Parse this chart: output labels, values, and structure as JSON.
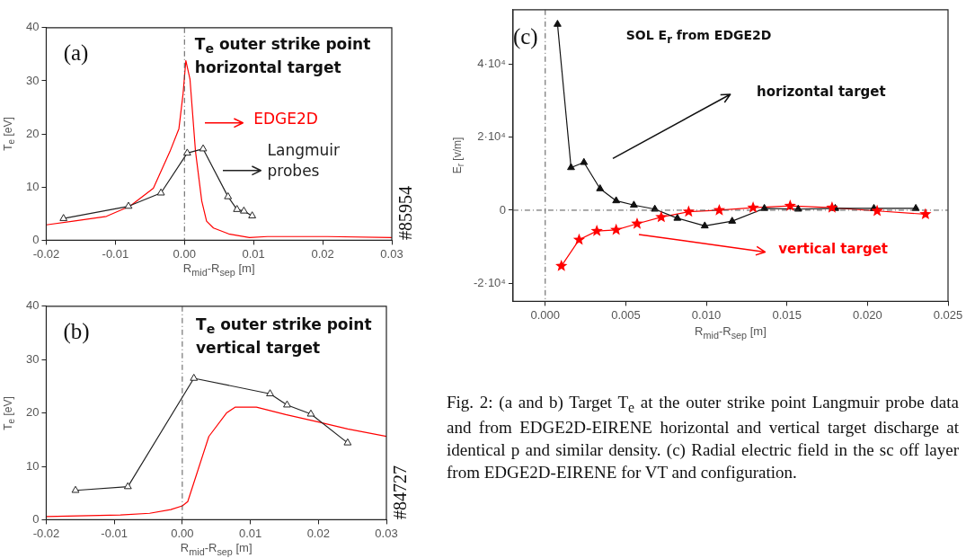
{
  "chart_data": [
    {
      "type": "line",
      "title": "T$_{e}$ outer strike point horizontal target",
      "xlabel": "R$_{mid}$-R$_{sep}$ [m]",
      "ylabel": "T$_{e}$ [eV]",
      "xlim": [
        -0.02,
        0.03
      ],
      "ylim": [
        0,
        40
      ],
      "xticks": [
        -0.02,
        -0.01,
        {
          "value": 0,
          "label": "0.00"
        },
        0.01,
        0.02,
        0.03
      ],
      "yticks": [
        0,
        10,
        20,
        30,
        40
      ],
      "series": [
        {
          "name": "Langmuir probes",
          "color": "#222222",
          "marker": "triangle",
          "x": [
            -0.0175,
            -0.0081,
            -0.0034,
            0.0004,
            0.0027,
            0.0063,
            0.0076,
            0.0086,
            0.0098
          ],
          "values": [
            4.1,
            6.4,
            8.9,
            16.4,
            17.2,
            8.2,
            5.8,
            5.5,
            4.6
          ]
        },
        {
          "name": "EDGE2D",
          "color": "#ff0000",
          "marker": "none",
          "x": [
            -0.02,
            -0.0161,
            -0.0113,
            -0.0079,
            -0.0045,
            -0.0021,
            -0.0008,
            -0.0002,
            0.0002,
            0.0008,
            0.0016,
            0.0025,
            0.0032,
            0.0042,
            0.0064,
            0.0094,
            0.012,
            0.0207,
            0.03
          ],
          "values": [
            2.9,
            3.6,
            4.5,
            6.4,
            9.8,
            16.7,
            21.0,
            27.6,
            33.8,
            30.3,
            16.7,
            7.4,
            3.6,
            2.3,
            1.2,
            0.5,
            0.7,
            0.7,
            0.5
          ]
        }
      ],
      "ref_lines": [
        {
          "axis": "x",
          "value": 0
        }
      ],
      "legend": "right",
      "annotations": [
        "(a)",
        "#85954"
      ]
    },
    {
      "type": "line",
      "title": "T$_{e}$ outer strike point vertical target",
      "xlabel": "R$_{mid}$-R$_{sep}$ [m]",
      "ylabel": "T$_{e}$ [eV]",
      "xlim": [
        -0.02,
        0.03
      ],
      "ylim": [
        0,
        40
      ],
      "xticks": [
        -0.02,
        -0.01,
        {
          "value": 0,
          "label": "0.00"
        },
        0.01,
        0.02,
        0.03
      ],
      "yticks": [
        0,
        10,
        20,
        30,
        40
      ],
      "series": [
        {
          "color": "#222222",
          "marker": "triangle",
          "x": [
            -0.0157,
            -0.008,
            0.0017,
            0.0129,
            0.0154,
            0.0189,
            0.0243
          ],
          "values": [
            5.5,
            6.2,
            26.5,
            23.6,
            21.5,
            19.8,
            14.4
          ]
        },
        {
          "color": "#ff0000",
          "marker": "none",
          "x": [
            -0.02,
            -0.0091,
            -0.0048,
            -0.0017,
            0,
            0.0008,
            0.0022,
            0.0039,
            0.0065,
            0.0078,
            0.0109,
            0.0152,
            0.02,
            0.0243,
            0.03
          ],
          "values": [
            0.6,
            0.9,
            1.2,
            1.9,
            2.6,
            3.4,
            8.9,
            15.6,
            20,
            21.1,
            21.1,
            19.7,
            18.3,
            17.0,
            15.6
          ]
        }
      ],
      "ref_lines": [
        {
          "axis": "x",
          "value": 0
        }
      ],
      "annotations": [
        "(b)",
        "#84727"
      ]
    },
    {
      "type": "line",
      "title": "SOL E$_{r}$ from EDGE2D",
      "xlabel": "R$_{mid}$-R$_{sep}$ [m]",
      "ylabel": "E$_{r}$ [v/m]",
      "xlim": [
        -0.002,
        0.025
      ],
      "ylim": [
        -25000,
        55000
      ],
      "xticks": [
        {
          "value": 0,
          "label": "0.000"
        },
        {
          "value": 0.005,
          "label": "0.005"
        },
        {
          "value": 0.01,
          "label": "0.010"
        },
        {
          "value": 0.015,
          "label": "0.015"
        },
        {
          "value": 0.02,
          "label": "0.020"
        },
        {
          "value": 0.025,
          "label": "0.025"
        }
      ],
      "yticks": [
        {
          "value": -20000,
          "label": "-2·10⁴"
        },
        0,
        {
          "value": 20000,
          "label": "2·10⁴"
        },
        {
          "value": 40000,
          "label": "4·10⁴"
        }
      ],
      "series": [
        {
          "name": "horizontal target",
          "color": "#111111",
          "marker": "triangle",
          "x": [
            0.00076,
            0.0016,
            0.0024,
            0.0034,
            0.0044,
            0.0055,
            0.0068,
            0.0082,
            0.0099,
            0.0116,
            0.0136,
            0.0157,
            0.018,
            0.0204,
            0.023
          ],
          "values": [
            51000,
            11700,
            13100,
            5900,
            2600,
            1400,
            300,
            -2200,
            -4300,
            -3000,
            500,
            300,
            500,
            500,
            500
          ]
        },
        {
          "name": "vertical target",
          "color": "#ff0000",
          "marker": "star",
          "x": [
            0.001,
            0.0021,
            0.0032,
            0.0044,
            0.0057,
            0.0072,
            0.0089,
            0.0108,
            0.0129,
            0.0152,
            0.0178,
            0.0206,
            0.0236
          ],
          "values": [
            -15300,
            -8100,
            -5700,
            -5400,
            -3700,
            -1900,
            -400,
            0,
            700,
            1200,
            700,
            -200,
            -1100
          ]
        }
      ],
      "ref_lines": [
        {
          "axis": "x",
          "value": 0
        },
        {
          "axis": "y",
          "value": 0
        }
      ],
      "legend": "right",
      "annotations": [
        "(c)",
        "Fig. 2: (a and b) Target T$_{e}$ at the outer strike point Langmuir probe data and from EDGE2D-EIRENE horizontal and vertical target discharge at identical p and similar density. (c) Radial electric field in the sc off layer from EDGE2D-EIRENE for VT and configuration."
      ]
    }
  ]
}
